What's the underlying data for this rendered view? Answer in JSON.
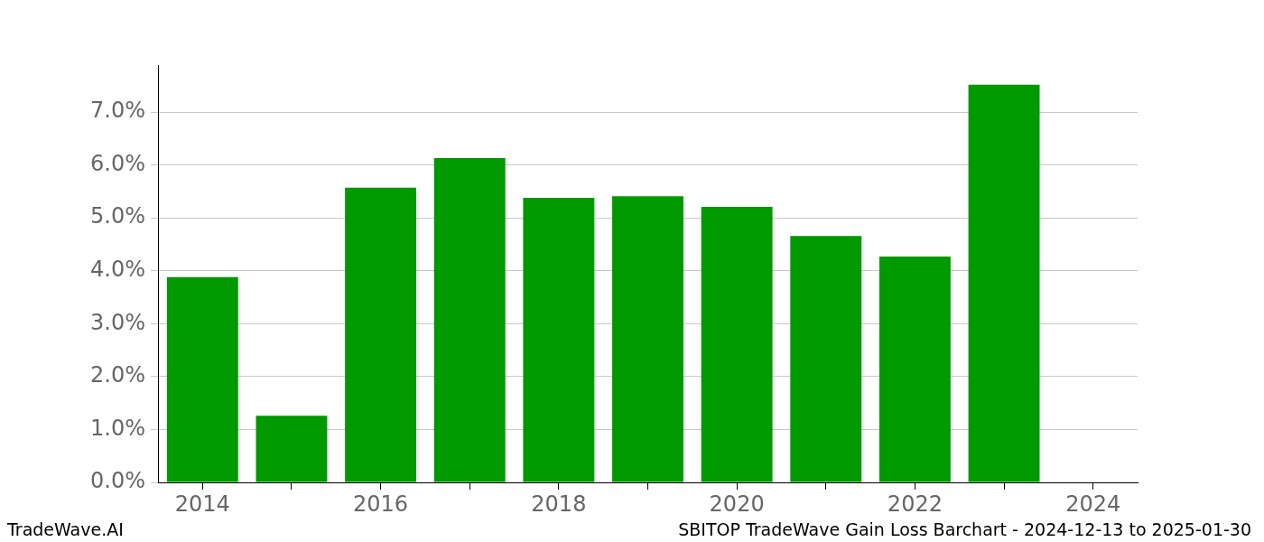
{
  "chart_data": {
    "type": "bar",
    "title": "SBITOP TradeWave Gain Loss Barchart - 2024-12-13 to 2025-01-30",
    "annotations": [
      "TradeWave.AI"
    ],
    "categories": [
      "2014",
      null,
      "2016",
      null,
      "2018",
      null,
      "2020",
      null,
      "2022",
      null,
      "2024"
    ],
    "values": [
      3.88,
      1.26,
      5.57,
      6.13,
      5.38,
      5.41,
      5.21,
      4.66,
      4.27,
      7.52,
      null
    ],
    "color": "#009900",
    "ylim": [
      0,
      7.89
    ],
    "yticks": [
      {
        "value": 0,
        "label": "0.0%"
      },
      {
        "value": 1,
        "label": "1.0%"
      },
      {
        "value": 2,
        "label": "2.0%"
      },
      {
        "value": 3,
        "label": "3.0%"
      },
      {
        "value": 4,
        "label": "4.0%"
      },
      {
        "value": 5,
        "label": "5.0%"
      },
      {
        "value": 6,
        "label": "6.0%"
      },
      {
        "value": 7,
        "label": "7.0%"
      }
    ],
    "grid": true
  }
}
